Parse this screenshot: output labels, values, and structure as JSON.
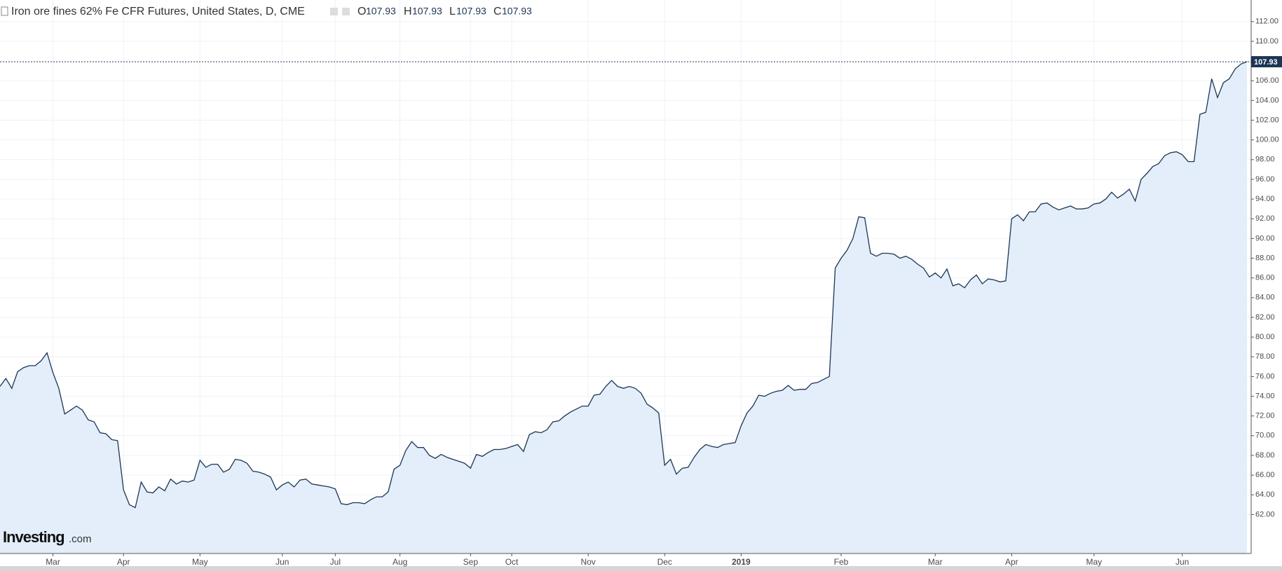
{
  "header": {
    "title": "Iron ore fines 62% Fe CFR Futures, United States, D, CME",
    "o_label": "O",
    "open": 107.93,
    "h_label": "H",
    "high": 107.93,
    "l_label": "L",
    "low": 107.93,
    "c_label": "C",
    "close": 107.93
  },
  "logo": {
    "name": "Investing",
    "suffix": ".com"
  },
  "chart_data": {
    "type": "area",
    "color": "#1c3554",
    "fill": "#e3eefa",
    "grid": true,
    "values": [
      75.0,
      75.8,
      74.8,
      76.5,
      76.9,
      77.1,
      77.1,
      77.6,
      78.4,
      76.4,
      74.8,
      72.2,
      72.6,
      73.0,
      72.6,
      71.6,
      71.4,
      70.3,
      70.2,
      69.6,
      69.5,
      64.5,
      63.0,
      62.7,
      65.3,
      64.3,
      64.2,
      64.8,
      64.4,
      65.6,
      65.1,
      65.4,
      65.3,
      65.5,
      67.5,
      66.8,
      67.1,
      67.1,
      66.3,
      66.6,
      67.6,
      67.5,
      67.2,
      66.4,
      66.3,
      66.1,
      65.8,
      64.5,
      65.0,
      65.3,
      64.8,
      65.5,
      65.6,
      65.1,
      65.0,
      64.9,
      64.8,
      64.6,
      63.1,
      63.0,
      63.2,
      63.2,
      63.1,
      63.5,
      63.8,
      63.8,
      64.3,
      66.6,
      67.0,
      68.5,
      69.4,
      68.8,
      68.8,
      68.0,
      67.7,
      68.1,
      67.8,
      67.6,
      67.4,
      67.2,
      66.7,
      68.1,
      67.9,
      68.3,
      68.6,
      68.6,
      68.7,
      68.9,
      69.1,
      68.4,
      70.1,
      70.4,
      70.3,
      70.6,
      71.4,
      71.5,
      72.0,
      72.4,
      72.7,
      73.0,
      73.0,
      74.1,
      74.2,
      75.0,
      75.6,
      75.0,
      74.8,
      75.0,
      74.8,
      74.3,
      73.2,
      72.8,
      72.3,
      67.0,
      67.6,
      66.1,
      66.7,
      66.8,
      67.8,
      68.6,
      69.1,
      68.9,
      68.8,
      69.1,
      69.2,
      69.3,
      71.0,
      72.3,
      73.0,
      74.1,
      74.0,
      74.3,
      74.5,
      74.6,
      75.1,
      74.6,
      74.7,
      74.7,
      75.3,
      75.4,
      75.7,
      76.0,
      87.0,
      88.0,
      88.8,
      90.0,
      92.2,
      92.1,
      88.5,
      88.2,
      88.5,
      88.5,
      88.4,
      88.0,
      88.2,
      87.9,
      87.4,
      87.0,
      86.1,
      86.5,
      86.0,
      86.9,
      85.2,
      85.4,
      85.0,
      85.8,
      86.3,
      85.4,
      85.9,
      85.8,
      85.6,
      85.7,
      92.0,
      92.4,
      91.8,
      92.7,
      92.7,
      93.5,
      93.6,
      93.2,
      92.9,
      93.1,
      93.3,
      93.0,
      93.0,
      93.1,
      93.5,
      93.6,
      94.0,
      94.7,
      94.1,
      94.5,
      95.0,
      93.8,
      96.0,
      96.6,
      97.3,
      97.6,
      98.4,
      98.7,
      98.8,
      98.5,
      97.8,
      97.8,
      102.6,
      102.8,
      106.2,
      104.3,
      105.8,
      106.2,
      107.2,
      107.7,
      107.93
    ],
    "xlim": [
      0,
      212
    ],
    "xticks": [
      {
        "value": 9,
        "label": "Mar"
      },
      {
        "value": 21,
        "label": "Apr"
      },
      {
        "value": 34,
        "label": "May"
      },
      {
        "value": 48,
        "label": "Jun"
      },
      {
        "value": 57,
        "label": "Jul"
      },
      {
        "value": 68,
        "label": "Aug"
      },
      {
        "value": 80,
        "label": "Sep"
      },
      {
        "value": 87,
        "label": "Oct"
      },
      {
        "value": 100,
        "label": "Nov"
      },
      {
        "value": 113,
        "label": "Dec"
      },
      {
        "value": 126,
        "label": "2019"
      },
      {
        "value": 143,
        "label": "Feb"
      },
      {
        "value": 159,
        "label": "Mar"
      },
      {
        "value": 172,
        "label": "Apr"
      },
      {
        "value": 186,
        "label": "May"
      },
      {
        "value": 201,
        "label": "Jun"
      }
    ],
    "ylim": [
      58.05,
      114.19
    ],
    "yticks": [
      {
        "value": 62,
        "label": "62.00"
      },
      {
        "value": 64,
        "label": "64.00"
      },
      {
        "value": 66,
        "label": "66.00"
      },
      {
        "value": 68,
        "label": "68.00"
      },
      {
        "value": 70,
        "label": "70.00"
      },
      {
        "value": 72,
        "label": "72.00"
      },
      {
        "value": 74,
        "label": "74.00"
      },
      {
        "value": 76,
        "label": "76.00"
      },
      {
        "value": 78,
        "label": "78.00"
      },
      {
        "value": 80,
        "label": "80.00"
      },
      {
        "value": 82,
        "label": "82.00"
      },
      {
        "value": 84,
        "label": "84.00"
      },
      {
        "value": 86,
        "label": "86.00"
      },
      {
        "value": 88,
        "label": "88.00"
      },
      {
        "value": 90,
        "label": "90.00"
      },
      {
        "value": 92,
        "label": "92.00"
      },
      {
        "value": 94,
        "label": "94.00"
      },
      {
        "value": 96,
        "label": "96.00"
      },
      {
        "value": 98,
        "label": "98.00"
      },
      {
        "value": 100,
        "label": "100.00"
      },
      {
        "value": 102,
        "label": "102.00"
      },
      {
        "value": 104,
        "label": "104.00"
      },
      {
        "value": 106,
        "label": "106.00"
      },
      {
        "value": 110,
        "label": "110.00"
      },
      {
        "value": 112,
        "label": "112.00"
      }
    ]
  }
}
